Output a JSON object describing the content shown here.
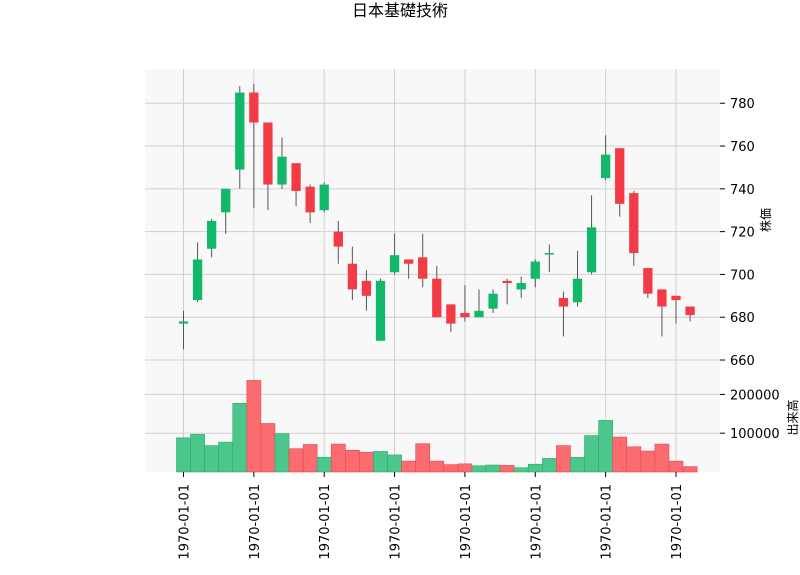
{
  "chart_data": {
    "type": "candlestick",
    "title": "日本基礎技術",
    "colors": {
      "up": "#12b86a",
      "down": "#f23b45",
      "up_volume": "#4cc78b",
      "down_volume": "#fb6b6f",
      "wick": "#555555",
      "panel_bg": "#f8f8f8",
      "grid": "#d0d0d0"
    },
    "price_axis": {
      "label": "株価",
      "ylim": [
        653,
        796
      ],
      "ticks": [
        660,
        680,
        700,
        720,
        740,
        760,
        780
      ],
      "position": "right"
    },
    "volume_axis": {
      "label": "出来高",
      "ylim": [
        0,
        250000
      ],
      "ticks": [
        100000,
        200000
      ],
      "position": "right"
    },
    "x_axis": {
      "tick_labels": [
        "1970-01-01",
        "1970-01-01",
        "1970-01-01",
        "1970-01-01",
        "1970-01-01",
        "1970-01-01",
        "1970-01-01",
        "1970-01-01"
      ],
      "tick_positions": [
        0,
        5,
        10,
        15,
        20,
        25,
        30,
        35
      ]
    },
    "grid": true,
    "candles": [
      {
        "open": 677,
        "high": 683,
        "low": 665,
        "close": 678,
        "volume": 88000
      },
      {
        "open": 688,
        "high": 715,
        "low": 687,
        "close": 707,
        "volume": 97000
      },
      {
        "open": 712,
        "high": 726,
        "low": 708,
        "close": 725,
        "volume": 68000
      },
      {
        "open": 729,
        "high": 740,
        "low": 719,
        "close": 740,
        "volume": 77000
      },
      {
        "open": 749,
        "high": 788,
        "low": 740,
        "close": 785,
        "volume": 177000
      },
      {
        "open": 785,
        "high": 789,
        "low": 731,
        "close": 771,
        "volume": 236000
      },
      {
        "open": 771,
        "high": 771,
        "low": 730,
        "close": 742,
        "volume": 125000
      },
      {
        "open": 742,
        "high": 764,
        "low": 740,
        "close": 755,
        "volume": 99000
      },
      {
        "open": 752,
        "high": 752,
        "low": 732,
        "close": 739,
        "volume": 60000
      },
      {
        "open": 741,
        "high": 742,
        "low": 724,
        "close": 729,
        "volume": 71000
      },
      {
        "open": 730,
        "high": 743,
        "low": 729,
        "close": 742,
        "volume": 38000
      },
      {
        "open": 720,
        "high": 725,
        "low": 705,
        "close": 713,
        "volume": 72000
      },
      {
        "open": 705,
        "high": 713,
        "low": 688,
        "close": 693,
        "volume": 56000
      },
      {
        "open": 697,
        "high": 702,
        "low": 683,
        "close": 690,
        "volume": 51000
      },
      {
        "open": 669,
        "high": 698,
        "low": 669,
        "close": 697,
        "volume": 53000
      },
      {
        "open": 701,
        "high": 719,
        "low": 700,
        "close": 709,
        "volume": 44000
      },
      {
        "open": 707,
        "high": 707,
        "low": 698,
        "close": 705,
        "volume": 28000
      },
      {
        "open": 708,
        "high": 719,
        "low": 694,
        "close": 698,
        "volume": 73000
      },
      {
        "open": 698,
        "high": 704,
        "low": 680,
        "close": 680,
        "volume": 28000
      },
      {
        "open": 686,
        "high": 686,
        "low": 673,
        "close": 677,
        "volume": 19000
      },
      {
        "open": 682,
        "high": 695,
        "low": 678,
        "close": 680,
        "volume": 21000
      },
      {
        "open": 680,
        "high": 693,
        "low": 680,
        "close": 683,
        "volume": 16000
      },
      {
        "open": 684,
        "high": 693,
        "low": 682,
        "close": 691,
        "volume": 18000
      },
      {
        "open": 697,
        "high": 698,
        "low": 686,
        "close": 696,
        "volume": 17000
      },
      {
        "open": 693,
        "high": 699,
        "low": 689,
        "close": 696,
        "volume": 11000
      },
      {
        "open": 698,
        "high": 707,
        "low": 694,
        "close": 706,
        "volume": 20000
      },
      {
        "open": 710,
        "high": 714,
        "low": 701,
        "close": 710,
        "volume": 35000
      },
      {
        "open": 689,
        "high": 692,
        "low": 671,
        "close": 685,
        "volume": 68000
      },
      {
        "open": 687,
        "high": 711,
        "low": 685,
        "close": 698,
        "volume": 38000
      },
      {
        "open": 701,
        "high": 737,
        "low": 700,
        "close": 722,
        "volume": 94000
      },
      {
        "open": 745,
        "high": 765,
        "low": 744,
        "close": 756,
        "volume": 133000
      },
      {
        "open": 759,
        "high": 759,
        "low": 727,
        "close": 733,
        "volume": 90000
      },
      {
        "open": 738,
        "high": 739,
        "low": 704,
        "close": 710,
        "volume": 65000
      },
      {
        "open": 703,
        "high": 703,
        "low": 689,
        "close": 691,
        "volume": 54000
      },
      {
        "open": 693,
        "high": 693,
        "low": 671,
        "close": 685,
        "volume": 72000
      },
      {
        "open": 690,
        "high": 690,
        "low": 677,
        "close": 688,
        "volume": 28000
      },
      {
        "open": 685,
        "high": 685,
        "low": 678,
        "close": 681,
        "volume": 14000
      }
    ]
  }
}
